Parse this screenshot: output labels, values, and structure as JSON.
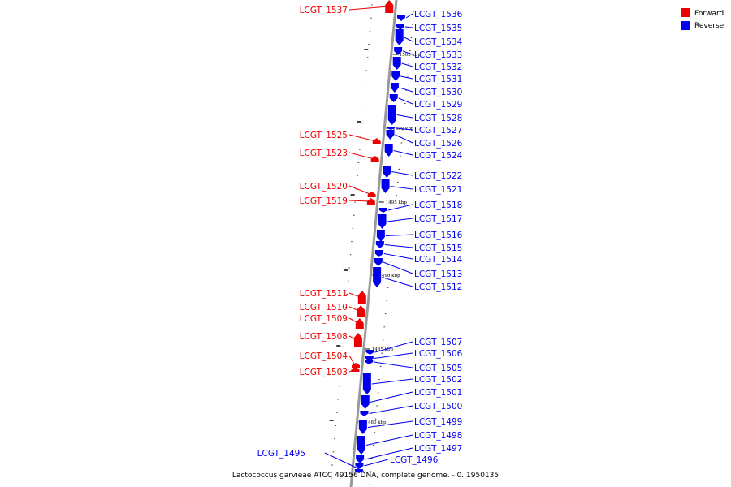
{
  "caption": "Lactococcus garvieae ATCC 49156 DNA, complete genome. - 0..1950135",
  "legend": [
    {
      "label": "Forward",
      "color": "#ee0000"
    },
    {
      "label": "Reverse",
      "color": "#0000ee"
    }
  ],
  "colors": {
    "forward": "#ee0000",
    "reverse": "#0000ee",
    "axis": "#999999"
  },
  "ruler_labels": [
    "1505 kbp",
    "1500 kbp",
    "1495 kbp",
    "1490 kbp",
    "1485 kbp",
    "1480 kbp"
  ],
  "genes": [
    {
      "name": "LCGT_1537",
      "strand": "forward"
    },
    {
      "name": "LCGT_1536",
      "strand": "reverse"
    },
    {
      "name": "LCGT_1535",
      "strand": "reverse"
    },
    {
      "name": "LCGT_1534",
      "strand": "reverse"
    },
    {
      "name": "LCGT_1533",
      "strand": "reverse"
    },
    {
      "name": "LCGT_1532",
      "strand": "reverse"
    },
    {
      "name": "LCGT_1531",
      "strand": "reverse"
    },
    {
      "name": "LCGT_1530",
      "strand": "reverse"
    },
    {
      "name": "LCGT_1529",
      "strand": "reverse"
    },
    {
      "name": "LCGT_1528",
      "strand": "reverse"
    },
    {
      "name": "LCGT_1527",
      "strand": "reverse"
    },
    {
      "name": "LCGT_1526",
      "strand": "reverse"
    },
    {
      "name": "LCGT_1525",
      "strand": "forward"
    },
    {
      "name": "LCGT_1524",
      "strand": "reverse"
    },
    {
      "name": "LCGT_1523",
      "strand": "forward"
    },
    {
      "name": "LCGT_1522",
      "strand": "reverse"
    },
    {
      "name": "LCGT_1521",
      "strand": "reverse"
    },
    {
      "name": "LCGT_1520",
      "strand": "forward"
    },
    {
      "name": "LCGT_1519",
      "strand": "forward"
    },
    {
      "name": "LCGT_1518",
      "strand": "reverse"
    },
    {
      "name": "LCGT_1517",
      "strand": "reverse"
    },
    {
      "name": "LCGT_1516",
      "strand": "reverse"
    },
    {
      "name": "LCGT_1515",
      "strand": "reverse"
    },
    {
      "name": "LCGT_1514",
      "strand": "reverse"
    },
    {
      "name": "LCGT_1513",
      "strand": "reverse"
    },
    {
      "name": "LCGT_1512",
      "strand": "reverse"
    },
    {
      "name": "LCGT_1511",
      "strand": "forward"
    },
    {
      "name": "LCGT_1510",
      "strand": "forward"
    },
    {
      "name": "LCGT_1509",
      "strand": "forward"
    },
    {
      "name": "LCGT_1508",
      "strand": "forward"
    },
    {
      "name": "LCGT_1507",
      "strand": "reverse"
    },
    {
      "name": "LCGT_1506",
      "strand": "reverse"
    },
    {
      "name": "LCGT_1505",
      "strand": "reverse"
    },
    {
      "name": "LCGT_1504",
      "strand": "forward"
    },
    {
      "name": "LCGT_1503",
      "strand": "forward"
    },
    {
      "name": "LCGT_1502",
      "strand": "reverse"
    },
    {
      "name": "LCGT_1501",
      "strand": "reverse"
    },
    {
      "name": "LCGT_1500",
      "strand": "reverse"
    },
    {
      "name": "LCGT_1499",
      "strand": "reverse"
    },
    {
      "name": "LCGT_1498",
      "strand": "reverse"
    },
    {
      "name": "LCGT_1497",
      "strand": "reverse"
    },
    {
      "name": "LCGT_1496",
      "strand": "reverse"
    },
    {
      "name": "LCGT_1495",
      "strand": "reverse"
    }
  ]
}
